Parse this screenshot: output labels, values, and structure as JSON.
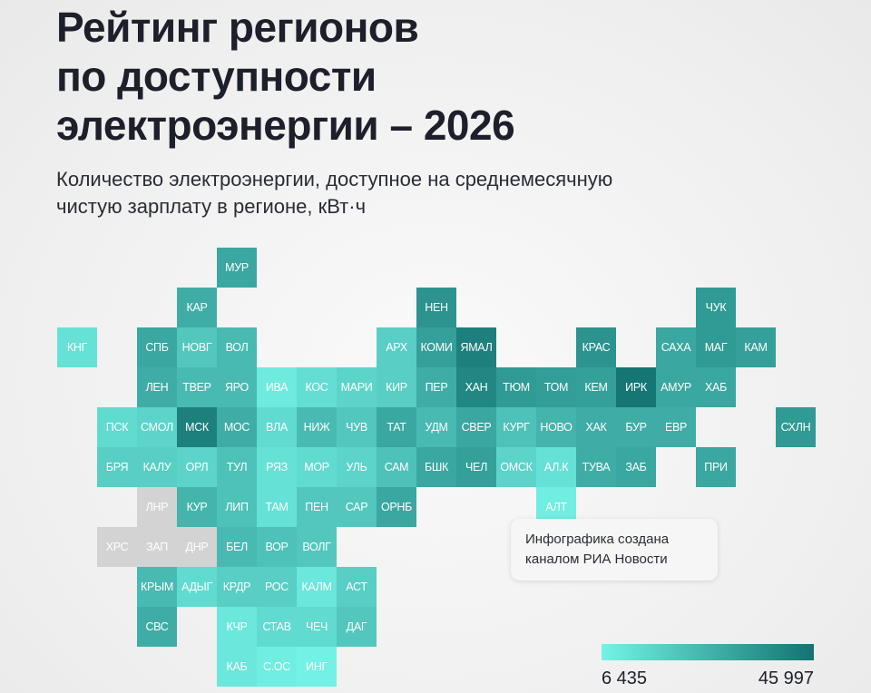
{
  "chart_data": {
    "type": "tilemap",
    "title_lines": [
      "Рейтинг регионов",
      "по доступности",
      "электроэнергии – 2026"
    ],
    "subtitle_lines": [
      "Количество электроэнергии, доступное на среднемесячную",
      "чистую зарплату в регионе, кВт·ч"
    ],
    "annotation_lines": [
      "Инфографика создана",
      "каналом РИА Новости"
    ],
    "regions": [
      "МУР",
      "КАР",
      "НЕН",
      "ЧУК",
      "КНГ",
      "СПБ",
      "НОВГ",
      "ВОЛ",
      "АРХ",
      "КОМИ",
      "ЯМАЛ",
      "КРАС",
      "САХА",
      "МАГ",
      "КАМ",
      "ЛЕН",
      "ТВЕР",
      "ЯРО",
      "ИВА",
      "КОС",
      "МАРИ",
      "КИР",
      "ПЕР",
      "ХАН",
      "ТЮМ",
      "ТОМ",
      "КЕМ",
      "ИРК",
      "АМУР",
      "ХАБ",
      "ПСК",
      "СМОЛ",
      "МСК",
      "МОС",
      "ВЛА",
      "НИЖ",
      "ЧУВ",
      "ТАТ",
      "УДМ",
      "СВЕР",
      "КУРГ",
      "НОВО",
      "ХАК",
      "БУР",
      "ЕВР",
      "СХЛН",
      "БРЯ",
      "КАЛУ",
      "ОРЛ",
      "ТУЛ",
      "РЯЗ",
      "МОР",
      "УЛЬ",
      "САМ",
      "БШК",
      "ЧЕЛ",
      "ОМСК",
      "АЛ.К",
      "ТУВА",
      "ЗАБ",
      "ПРИ",
      "ЛНР",
      "КУР",
      "ЛИП",
      "ТАМ",
      "ПЕН",
      "САР",
      "ОРНБ",
      "АЛТ",
      "ХРС",
      "ЗАП",
      "ДНР",
      "БЕЛ",
      "ВОР",
      "ВОЛГ",
      "КРЫМ",
      "АДЫГ",
      "КРДР",
      "РОС",
      "КАЛМ",
      "АСТ",
      "СВС",
      "КЧР",
      "СТАВ",
      "ЧЕЧ",
      "ДАГ",
      "КАБ",
      "С.ОС",
      "ИНГ"
    ],
    "values": [
      30000,
      28000,
      36000,
      34000,
      12000,
      30000,
      20000,
      24000,
      18000,
      32000,
      42000,
      36000,
      30000,
      34000,
      32000,
      28000,
      24000,
      24000,
      9000,
      13000,
      16000,
      18000,
      28000,
      40000,
      34000,
      33000,
      32000,
      45000,
      30000,
      30000,
      14000,
      16000,
      42000,
      28000,
      14000,
      24000,
      20000,
      30000,
      24000,
      30000,
      22000,
      26000,
      28000,
      28000,
      28000,
      34000,
      18000,
      18000,
      16000,
      22000,
      12000,
      14000,
      16000,
      22000,
      30000,
      32000,
      16000,
      12000,
      28000,
      30000,
      30000,
      null,
      26000,
      22000,
      12000,
      20000,
      20000,
      30000,
      8000,
      null,
      null,
      null,
      24000,
      22000,
      20000,
      24000,
      14000,
      18000,
      18000,
      10000,
      18000,
      28000,
      10000,
      14000,
      14000,
      20000,
      10000,
      8000,
      7000
    ],
    "color_scale": {
      "range": [
        {
          "value": 6435,
          "label": "6 435"
        },
        {
          "value": 45997,
          "label": "45 997"
        }
      ],
      "colors": [
        "#74f3e6",
        "#137371"
      ],
      "missing_color": "#d3d3d3"
    }
  }
}
